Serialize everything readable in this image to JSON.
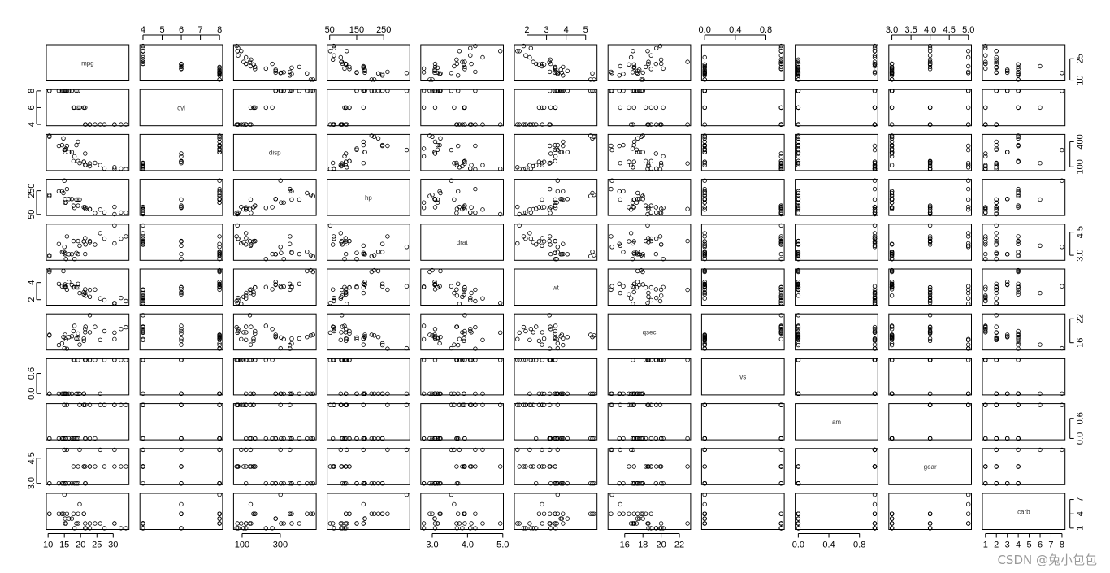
{
  "watermark": "CSDN @兔小包包",
  "chart_data": {
    "type": "scatter",
    "variables": [
      "mpg",
      "cyl",
      "disp",
      "hp",
      "drat",
      "wt",
      "qsec",
      "vs",
      "am",
      "gear",
      "carb"
    ],
    "ranges": {
      "mpg": [
        10.4,
        33.9
      ],
      "cyl": [
        4,
        8
      ],
      "disp": [
        71.1,
        472
      ],
      "hp": [
        52,
        335
      ],
      "drat": [
        2.76,
        4.93
      ],
      "wt": [
        1.513,
        5.424
      ],
      "qsec": [
        14.5,
        22.9
      ],
      "vs": [
        0,
        1
      ],
      "am": [
        0,
        1
      ],
      "gear": [
        3,
        5
      ],
      "carb": [
        1,
        8
      ]
    },
    "ticks": {
      "mpg": [
        "10",
        "15",
        "20",
        "25",
        "30"
      ],
      "cyl": [
        "4",
        "5",
        "6",
        "7",
        "8"
      ],
      "disp": [
        "100",
        "300"
      ],
      "hp": [
        "50",
        "150",
        "250"
      ],
      "drat": [
        "3.0",
        "4.0",
        "5.0"
      ],
      "wt": [
        "2",
        "3",
        "4",
        "5"
      ],
      "qsec": [
        "16",
        "18",
        "20",
        "22"
      ],
      "vs": [
        "0.0",
        "0.4",
        "0.8"
      ],
      "am": [
        "0.0",
        "0.4",
        "0.8"
      ],
      "gear": [
        "3.0",
        "3.5",
        "4.0",
        "4.5",
        "5.0"
      ],
      "carb": [
        "1",
        "2",
        "3",
        "4",
        "5",
        "6",
        "7",
        "8"
      ],
      "mpg_left": [
        "10",
        "25"
      ],
      "cyl_left": [
        "4",
        "6",
        "8"
      ],
      "disp_left": [
        "100",
        "400"
      ],
      "hp_left": [
        "50",
        "250"
      ],
      "drat_left": [
        "3.0",
        "4.5"
      ],
      "wt_left": [
        "2",
        "4"
      ],
      "qsec_left": [
        "16",
        "22"
      ],
      "vs_left": [
        "0.0",
        "0.6"
      ],
      "am_left": [
        "0.0",
        "0.6"
      ],
      "gear_left": [
        "3.0",
        "4.5"
      ],
      "carb_left": [
        "1",
        "4",
        "7"
      ]
    },
    "axis_sides": {
      "top": [
        "cyl",
        "hp",
        "wt",
        "vs",
        "gear"
      ],
      "bottom": [
        "mpg",
        "disp",
        "drat",
        "qsec",
        "am",
        "carb"
      ],
      "left": [
        "cyl",
        "hp",
        "wt",
        "vs",
        "gear"
      ],
      "right": [
        "mpg",
        "disp",
        "drat",
        "qsec",
        "am",
        "carb"
      ]
    },
    "data": {
      "mpg": [
        21.0,
        21.0,
        22.8,
        21.4,
        18.7,
        18.1,
        14.3,
        24.4,
        22.8,
        19.2,
        17.8,
        16.4,
        17.3,
        15.2,
        10.4,
        10.4,
        14.7,
        32.4,
        30.4,
        33.9,
        21.5,
        15.5,
        15.2,
        13.3,
        19.2,
        27.3,
        26.0,
        30.4,
        15.8,
        19.7,
        15.0,
        21.4
      ],
      "cyl": [
        6,
        6,
        4,
        6,
        8,
        6,
        8,
        4,
        4,
        6,
        6,
        8,
        8,
        8,
        8,
        8,
        8,
        4,
        4,
        4,
        4,
        8,
        8,
        8,
        8,
        4,
        4,
        4,
        8,
        6,
        8,
        4
      ],
      "disp": [
        160,
        160,
        108,
        258,
        360,
        225,
        360,
        146.7,
        140.8,
        167.6,
        167.6,
        275.8,
        275.8,
        275.8,
        472,
        460,
        440,
        78.7,
        75.7,
        71.1,
        120.1,
        318,
        304,
        350,
        400,
        79,
        120.3,
        95.1,
        351,
        145,
        301,
        121
      ],
      "hp": [
        110,
        110,
        93,
        110,
        175,
        105,
        245,
        62,
        95,
        123,
        123,
        180,
        180,
        180,
        205,
        215,
        230,
        66,
        52,
        65,
        97,
        150,
        150,
        245,
        175,
        66,
        91,
        113,
        264,
        175,
        335,
        109
      ],
      "drat": [
        3.9,
        3.9,
        3.85,
        3.08,
        3.15,
        2.76,
        3.21,
        3.69,
        3.92,
        3.92,
        3.92,
        3.07,
        3.07,
        3.07,
        2.93,
        3.0,
        3.23,
        4.08,
        4.93,
        4.22,
        3.7,
        2.76,
        3.15,
        3.73,
        3.08,
        4.08,
        4.43,
        3.77,
        4.22,
        3.62,
        3.54,
        4.11
      ],
      "wt": [
        2.62,
        2.875,
        2.32,
        3.215,
        3.44,
        3.46,
        3.57,
        3.19,
        3.15,
        3.44,
        3.44,
        4.07,
        3.73,
        3.78,
        5.25,
        5.424,
        5.345,
        2.2,
        1.615,
        1.835,
        2.465,
        3.52,
        3.435,
        3.84,
        3.845,
        1.935,
        2.14,
        1.513,
        3.17,
        2.77,
        3.57,
        2.78
      ],
      "qsec": [
        16.46,
        17.02,
        18.61,
        19.44,
        17.02,
        20.22,
        15.84,
        20.0,
        22.9,
        18.3,
        18.9,
        17.4,
        17.6,
        18.0,
        17.98,
        17.82,
        17.42,
        19.47,
        18.52,
        19.9,
        20.01,
        16.87,
        17.3,
        15.41,
        17.05,
        18.9,
        16.7,
        16.9,
        14.5,
        15.5,
        14.6,
        18.6
      ],
      "vs": [
        0,
        0,
        1,
        1,
        0,
        1,
        0,
        1,
        1,
        1,
        1,
        0,
        0,
        0,
        0,
        0,
        0,
        1,
        1,
        1,
        1,
        0,
        0,
        0,
        0,
        1,
        0,
        1,
        0,
        0,
        0,
        1
      ],
      "am": [
        1,
        1,
        1,
        0,
        0,
        0,
        0,
        0,
        0,
        0,
        0,
        0,
        0,
        0,
        0,
        0,
        0,
        1,
        1,
        1,
        0,
        0,
        0,
        0,
        0,
        1,
        1,
        1,
        1,
        1,
        1,
        1
      ],
      "gear": [
        4,
        4,
        4,
        3,
        3,
        3,
        3,
        4,
        4,
        4,
        4,
        3,
        3,
        3,
        3,
        3,
        3,
        4,
        4,
        4,
        3,
        3,
        3,
        3,
        3,
        4,
        5,
        5,
        5,
        5,
        5,
        4
      ],
      "carb": [
        4,
        4,
        1,
        1,
        2,
        1,
        4,
        2,
        2,
        4,
        4,
        3,
        3,
        3,
        4,
        4,
        4,
        1,
        2,
        1,
        1,
        2,
        2,
        4,
        2,
        1,
        2,
        2,
        4,
        6,
        8,
        2
      ]
    }
  }
}
